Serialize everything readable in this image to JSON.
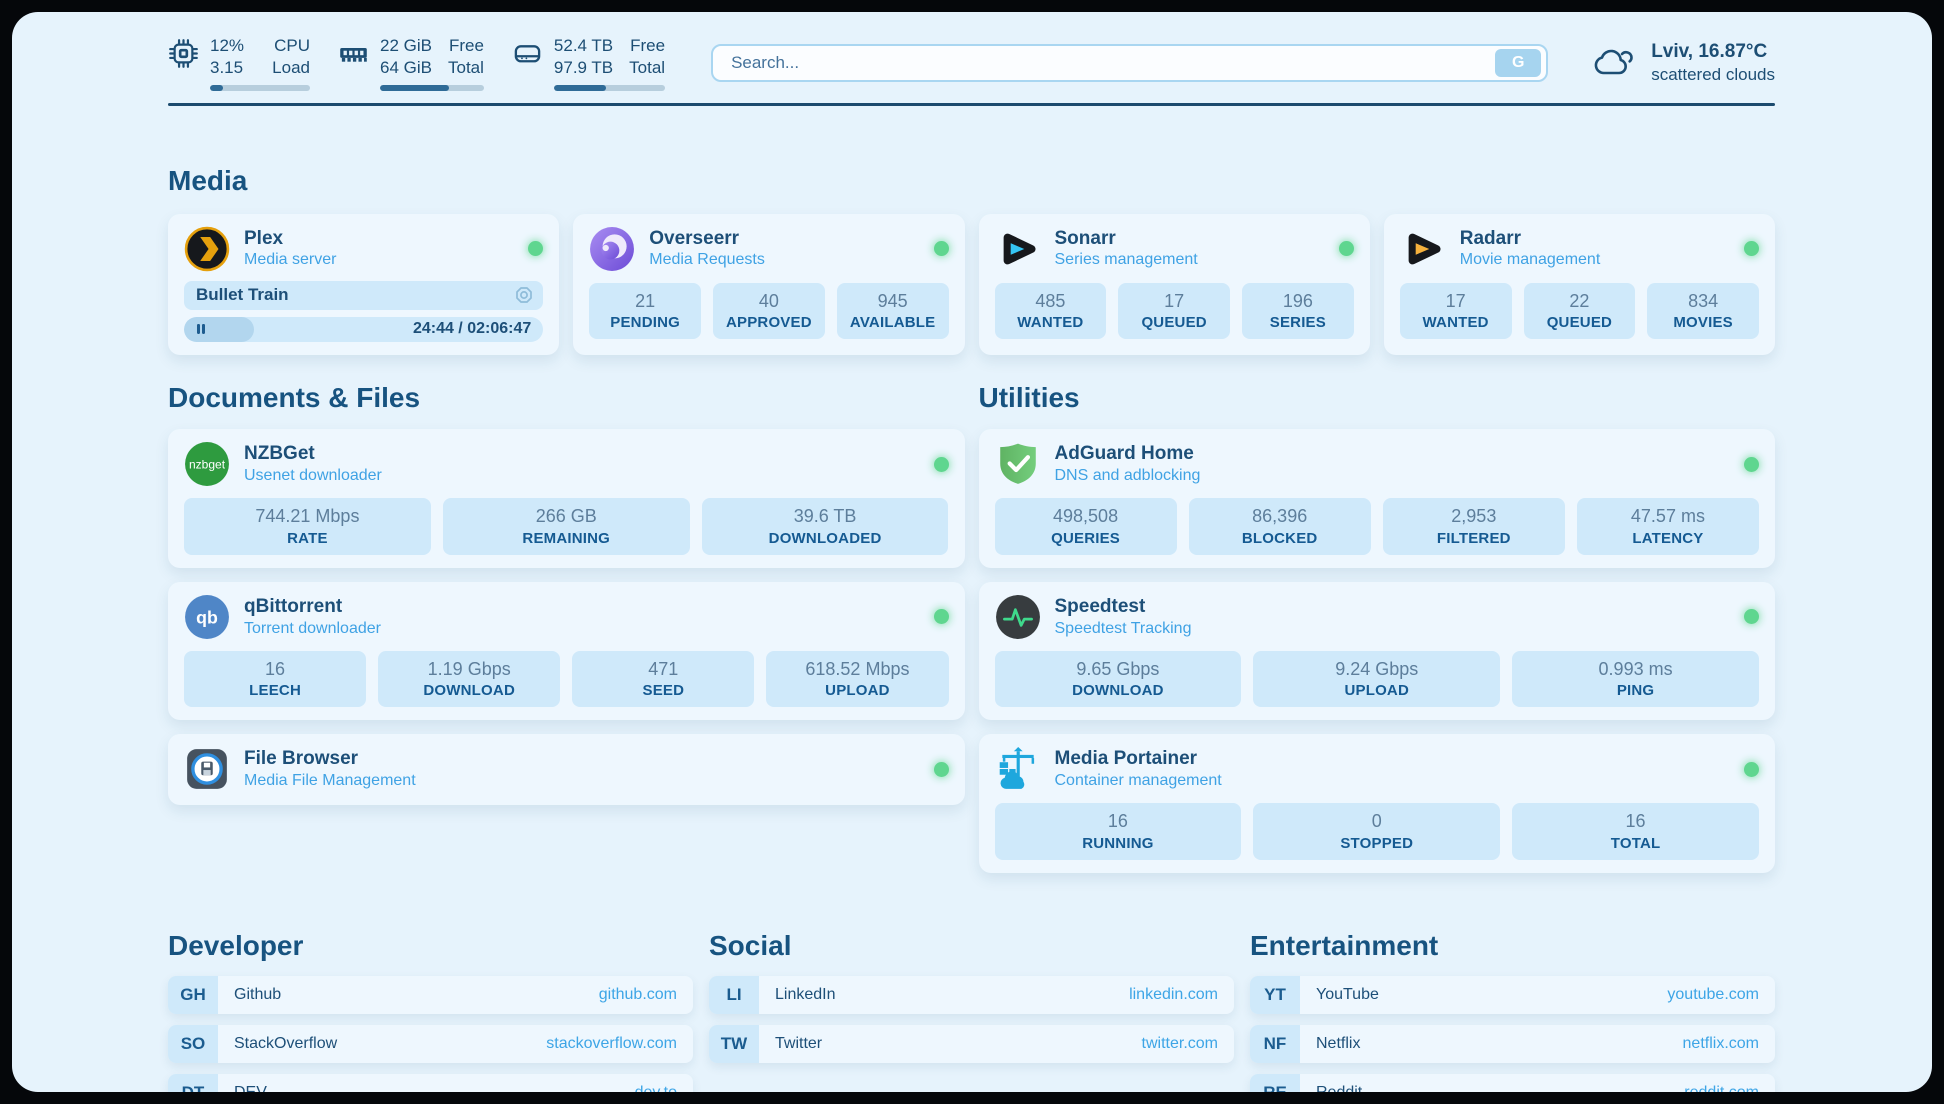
{
  "theme": {
    "page_bg": "#e6f3fc",
    "card_bg": "#eef7fe",
    "tile_bg": "#cfe9fa",
    "navy": "#1d4e74",
    "subtitle_blue": "#3fa2e4",
    "link_blue": "#3da5e6",
    "status_online": "#5fd68f"
  },
  "header": {
    "system_stats": [
      {
        "icon": "cpu-chip-icon",
        "value_top": "12%",
        "value_bottom": "3.15",
        "label_top": "CPU",
        "label_bottom": "Load",
        "progress_pct": 13
      },
      {
        "icon": "ram-icon",
        "value_top": "22 GiB",
        "value_bottom": "64 GiB",
        "label_top": "Free",
        "label_bottom": "Total",
        "progress_pct": 66
      },
      {
        "icon": "disk-icon",
        "value_top": "52.4 TB",
        "value_bottom": "97.9 TB",
        "label_top": "Free",
        "label_bottom": "Total",
        "progress_pct": 47
      }
    ],
    "search": {
      "placeholder": "Search...",
      "button_label": "G"
    },
    "weather": {
      "icon": "cloud-icon",
      "location_temp": "Lviv, 16.87°C",
      "condition": "scattered clouds"
    }
  },
  "app_sections": [
    {
      "id": "media",
      "title": "Media",
      "cards": [
        {
          "id": "plex",
          "icon": "plex-icon",
          "name": "Plex",
          "subtitle": "Media server",
          "online": true,
          "now_playing": {
            "title": "Bullet Train",
            "time": "24:44 / 02:06:47",
            "progress_pct": 19.5
          }
        },
        {
          "id": "overseerr",
          "icon": "overseerr-icon",
          "name": "Overseerr",
          "subtitle": "Media Requests",
          "online": true,
          "stats": [
            {
              "value": "21",
              "label": "PENDING"
            },
            {
              "value": "40",
              "label": "APPROVED"
            },
            {
              "value": "945",
              "label": "AVAILABLE"
            }
          ]
        },
        {
          "id": "sonarr",
          "icon": "sonarr-icon",
          "name": "Sonarr",
          "subtitle": "Series management",
          "online": true,
          "stats": [
            {
              "value": "485",
              "label": "WANTED"
            },
            {
              "value": "17",
              "label": "QUEUED"
            },
            {
              "value": "196",
              "label": "SERIES"
            }
          ]
        },
        {
          "id": "radarr",
          "icon": "radarr-icon",
          "name": "Radarr",
          "subtitle": "Movie management",
          "online": true,
          "stats": [
            {
              "value": "17",
              "label": "WANTED"
            },
            {
              "value": "22",
              "label": "QUEUED"
            },
            {
              "value": "834",
              "label": "MOVIES"
            }
          ]
        }
      ]
    },
    {
      "id": "documents",
      "title": "Documents & Files",
      "cards": [
        {
          "id": "nzbget",
          "icon": "nzbget-icon",
          "name": "NZBGet",
          "subtitle": "Usenet downloader",
          "online": true,
          "stats": [
            {
              "value": "744.21 Mbps",
              "label": "RATE"
            },
            {
              "value": "266 GB",
              "label": "REMAINING"
            },
            {
              "value": "39.6 TB",
              "label": "DOWNLOADED"
            }
          ]
        },
        {
          "id": "qbittorrent",
          "icon": "qbittorrent-icon",
          "name": "qBittorrent",
          "subtitle": "Torrent downloader",
          "online": true,
          "stats": [
            {
              "value": "16",
              "label": "LEECH"
            },
            {
              "value": "1.19 Gbps",
              "label": "DOWNLOAD"
            },
            {
              "value": "471",
              "label": "SEED"
            },
            {
              "value": "618.52 Mbps",
              "label": "UPLOAD"
            }
          ]
        },
        {
          "id": "filebrowser",
          "icon": "filebrowser-icon",
          "name": "File Browser",
          "subtitle": "Media File Management",
          "online": true
        }
      ]
    },
    {
      "id": "utilities",
      "title": "Utilities",
      "cards": [
        {
          "id": "adguard",
          "icon": "adguard-icon",
          "name": "AdGuard Home",
          "subtitle": "DNS and adblocking",
          "online": true,
          "stats": [
            {
              "value": "498,508",
              "label": "QUERIES"
            },
            {
              "value": "86,396",
              "label": "BLOCKED"
            },
            {
              "value": "2,953",
              "label": "FILTERED"
            },
            {
              "value": "47.57 ms",
              "label": "LATENCY"
            }
          ]
        },
        {
          "id": "speedtest",
          "icon": "speedtest-icon",
          "name": "Speedtest",
          "subtitle": "Speedtest Tracking",
          "online": true,
          "stats": [
            {
              "value": "9.65 Gbps",
              "label": "DOWNLOAD"
            },
            {
              "value": "9.24 Gbps",
              "label": "UPLOAD"
            },
            {
              "value": "0.993 ms",
              "label": "PING"
            }
          ]
        },
        {
          "id": "portainer",
          "icon": "portainer-icon",
          "name": "Media Portainer",
          "subtitle": "Container management",
          "online": true,
          "stats": [
            {
              "value": "16",
              "label": "RUNNING"
            },
            {
              "value": "0",
              "label": "STOPPED"
            },
            {
              "value": "16",
              "label": "TOTAL"
            }
          ]
        }
      ]
    }
  ],
  "bookmark_sections": [
    {
      "title": "Developer",
      "links": [
        {
          "abbr": "GH",
          "name": "Github",
          "url": "github.com"
        },
        {
          "abbr": "SO",
          "name": "StackOverflow",
          "url": "stackoverflow.com"
        },
        {
          "abbr": "DT",
          "name": "DEV",
          "url": "dev.to"
        }
      ]
    },
    {
      "title": "Social",
      "links": [
        {
          "abbr": "LI",
          "name": "LinkedIn",
          "url": "linkedin.com"
        },
        {
          "abbr": "TW",
          "name": "Twitter",
          "url": "twitter.com"
        }
      ]
    },
    {
      "title": "Entertainment",
      "links": [
        {
          "abbr": "YT",
          "name": "YouTube",
          "url": "youtube.com"
        },
        {
          "abbr": "NF",
          "name": "Netflix",
          "url": "netflix.com"
        },
        {
          "abbr": "RE",
          "name": "Reddit",
          "url": "reddit.com"
        }
      ]
    }
  ]
}
